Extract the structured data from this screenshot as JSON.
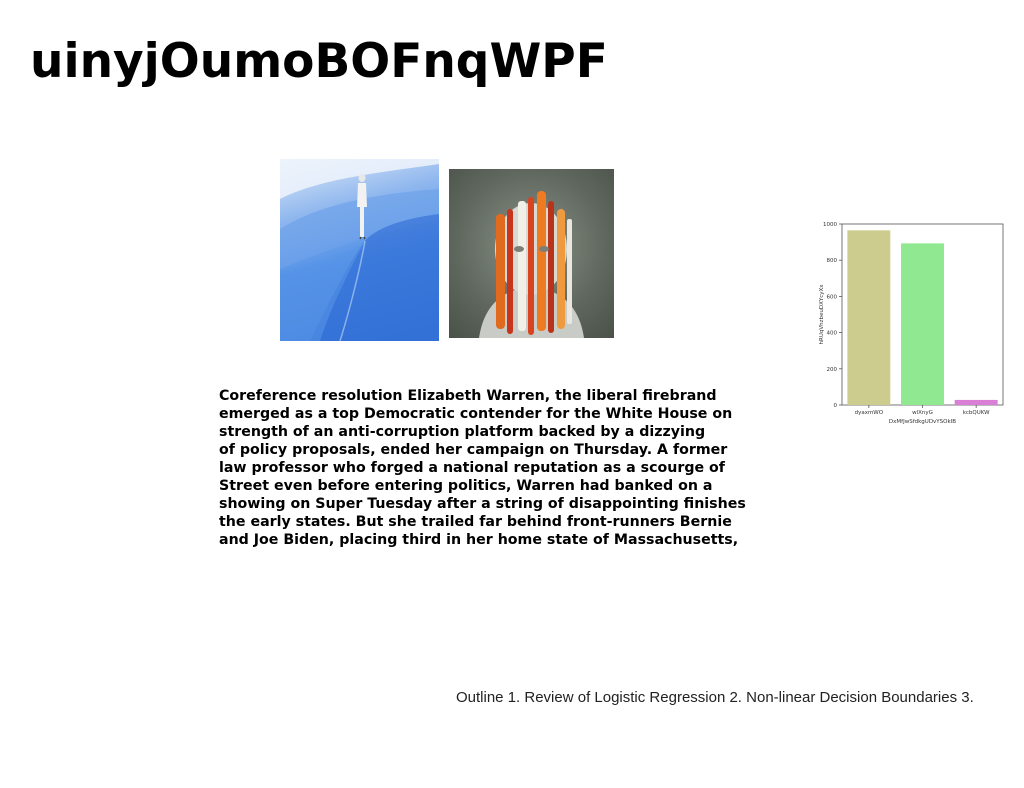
{
  "title": "uinyjOumoBOFnqWPF",
  "images": [
    {
      "name": "desert-figure-photo"
    },
    {
      "name": "striped-sculpture-photo"
    }
  ],
  "body_lines": [
    "Coreference resolution Elizabeth Warren, the liberal firebrand",
    "emerged as a top Democratic contender for the White House on",
    "strength of an anti-corruption platform backed by a dizzying",
    "of policy proposals, ended her campaign on Thursday. A former",
    "law professor who forged a national reputation as a scourge of",
    "Street even before entering politics, Warren had banked on a",
    "showing on Super Tuesday after a string of disappointing finishes",
    "the early states. But she trailed far behind front-runners Bernie",
    "and Joe Biden, placing third in her home state of Massachusetts,"
  ],
  "footer": "Outline 1. Review of Logistic Regression 2. Non-linear Decision Boundaries 3.",
  "chart_data": {
    "type": "bar",
    "categories": [
      "dyaxmWO",
      "wlXnyG",
      "kcbQUKW"
    ],
    "values": [
      965,
      893,
      28
    ],
    "colors": [
      "#cccc8f",
      "#90e890",
      "#d97fd6"
    ],
    "xlabel": "DxMfJwSfdkgUDvYSOkIB",
    "ylabel": "hRUqVhzbeuDXYcyXx",
    "ylim": [
      0,
      1000
    ],
    "yticks": [
      0,
      200,
      400,
      600,
      800,
      1000
    ]
  }
}
